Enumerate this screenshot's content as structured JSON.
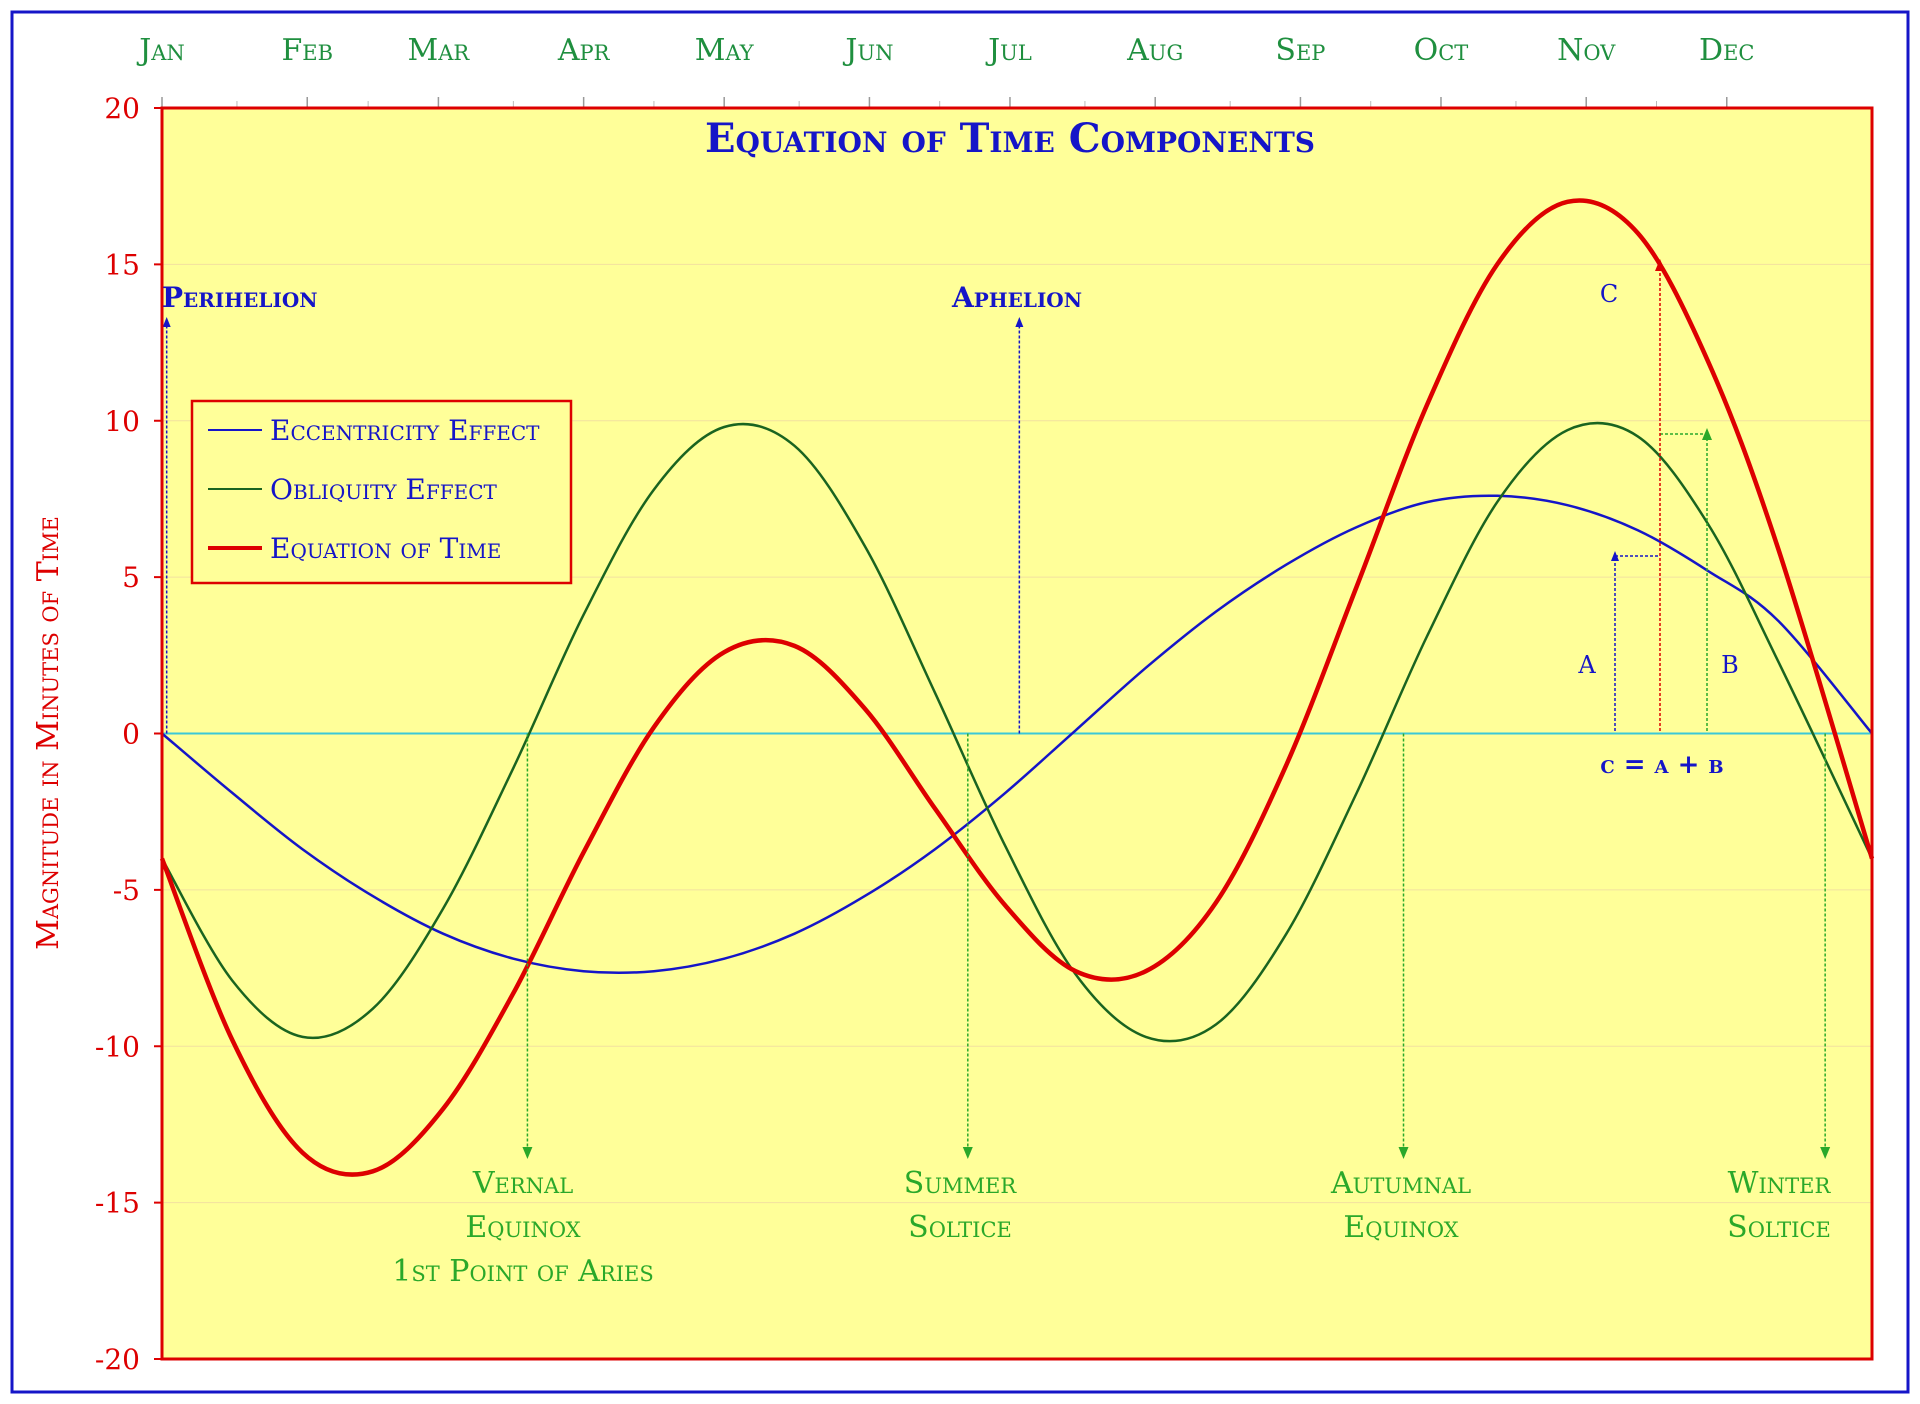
{
  "chart_data": {
    "type": "line",
    "title": "Equation of Time Components",
    "ylabel": "Magnitude in Minutes of Time",
    "xlabel": "",
    "ylim": [
      -20,
      20
    ],
    "yticks": [
      -20,
      -15,
      -10,
      -5,
      0,
      5,
      10,
      15,
      20
    ],
    "ytick_labels": [
      "-20",
      "-15",
      "-10",
      "-5",
      "0",
      "5",
      "10",
      "15",
      "20"
    ],
    "xlim": [
      0,
      365
    ],
    "month_labels": [
      "Jan",
      "Feb",
      "Mar",
      "Apr",
      "May",
      "Jun",
      "Jul",
      "Aug",
      "Sep",
      "Oct",
      "Nov",
      "Dec"
    ],
    "month_label_days": [
      0,
      31,
      59,
      90,
      120,
      151,
      181,
      212,
      243,
      273,
      304,
      334
    ],
    "grid": "horizontal",
    "legend_position": "top-left",
    "x_unit": "day of year",
    "series": [
      {
        "name": "Eccentricity Effect",
        "color": "#1515c8",
        "x": [
          0,
          15,
          30,
          45,
          60,
          75,
          90,
          105,
          120,
          135,
          150,
          165,
          180,
          195,
          210,
          225,
          240,
          255,
          270,
          285,
          300,
          315,
          330,
          345,
          365
        ],
        "values": [
          0,
          -1.9,
          -3.7,
          -5.2,
          -6.4,
          -7.2,
          -7.6,
          -7.6,
          -7.2,
          -6.4,
          -5.2,
          -3.7,
          -1.9,
          0.1,
          2.1,
          3.9,
          5.4,
          6.6,
          7.4,
          7.6,
          7.3,
          6.5,
          5.2,
          3.6,
          0
        ]
      },
      {
        "name": "Obliquity Effect",
        "color": "#1a6420",
        "x": [
          0,
          15,
          30,
          45,
          60,
          75,
          90,
          105,
          120,
          135,
          150,
          165,
          180,
          195,
          210,
          225,
          240,
          255,
          270,
          285,
          300,
          315,
          330,
          345,
          365
        ],
        "values": [
          -4.0,
          -7.9,
          -9.7,
          -8.8,
          -5.6,
          -1.1,
          3.8,
          7.8,
          9.8,
          9.2,
          6.0,
          1.3,
          -3.6,
          -7.7,
          -9.7,
          -9.3,
          -6.4,
          -1.9,
          3.1,
          7.4,
          9.7,
          9.5,
          6.7,
          2.3,
          -4.0
        ]
      },
      {
        "name": "Equation of Time",
        "color": "#dd0000",
        "x": [
          0,
          15,
          30,
          45,
          60,
          75,
          90,
          105,
          120,
          135,
          150,
          165,
          180,
          195,
          210,
          225,
          240,
          255,
          270,
          285,
          300,
          315,
          330,
          345,
          365
        ],
        "values": [
          -4.0,
          -9.8,
          -13.4,
          -14.0,
          -12.0,
          -8.3,
          -3.8,
          0.2,
          2.6,
          2.8,
          0.8,
          -2.4,
          -5.5,
          -7.6,
          -7.6,
          -5.4,
          -1.0,
          4.7,
          10.5,
          15.0,
          17.0,
          16.0,
          11.9,
          5.9,
          -4.0
        ]
      },
      {
        "name": "",
        "color": "#3bc8d8",
        "x": [
          0,
          365
        ],
        "values": [
          0,
          0
        ]
      }
    ],
    "annotations": {
      "perihelion": {
        "text": "Perihelion",
        "day": 1
      },
      "aphelion": {
        "text": "Aphelion",
        "day": 183
      },
      "vernal": {
        "lines": [
          "Vernal",
          "Equinox",
          "1st Point of Aries"
        ],
        "day": 78
      },
      "summer": {
        "lines": [
          "Summer",
          "Soltice"
        ],
        "day": 172
      },
      "autumnal": {
        "lines": [
          "Autumnal",
          "Equinox"
        ],
        "day": 265
      },
      "winter": {
        "lines": [
          "Winter",
          "Soltice"
        ],
        "day": 355
      },
      "component_labels": {
        "a": "A",
        "b": "B",
        "c": "C",
        "formula": "c = a + b"
      }
    },
    "colors": {
      "plot_background": "#ffff99",
      "plot_border": "#dd0000",
      "outer_border": "#1515c8",
      "month_label": "#1f8f3f",
      "axis_label": "#dd0000",
      "event_label": "#2aa82a",
      "annotation_text": "#1515c8"
    }
  }
}
